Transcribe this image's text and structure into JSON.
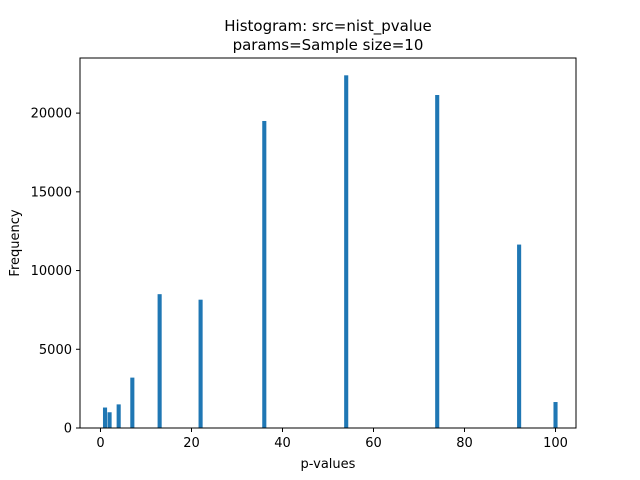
{
  "chart_data": {
    "type": "bar",
    "title_line1": "Histogram: src=nist_pvalue",
    "title_line2": "params=Sample size=10",
    "xlabel": "p-values",
    "ylabel": "Frequency",
    "xlim": [
      -4.5,
      104.5
    ],
    "ylim": [
      0,
      23500
    ],
    "xticks": [
      0,
      20,
      40,
      60,
      80,
      100
    ],
    "yticks": [
      0,
      5000,
      10000,
      15000,
      20000
    ],
    "bar_width": 0.9,
    "bar_color": "#1f77b4",
    "bars": [
      {
        "x": 1,
        "value": 1300
      },
      {
        "x": 2,
        "value": 1000
      },
      {
        "x": 4,
        "value": 1500
      },
      {
        "x": 7,
        "value": 3200
      },
      {
        "x": 13,
        "value": 8500
      },
      {
        "x": 22,
        "value": 8150
      },
      {
        "x": 36,
        "value": 19500
      },
      {
        "x": 54,
        "value": 22400
      },
      {
        "x": 74,
        "value": 21150
      },
      {
        "x": 92,
        "value": 11650
      },
      {
        "x": 100,
        "value": 1650
      }
    ],
    "grid": false,
    "legend": "none"
  }
}
